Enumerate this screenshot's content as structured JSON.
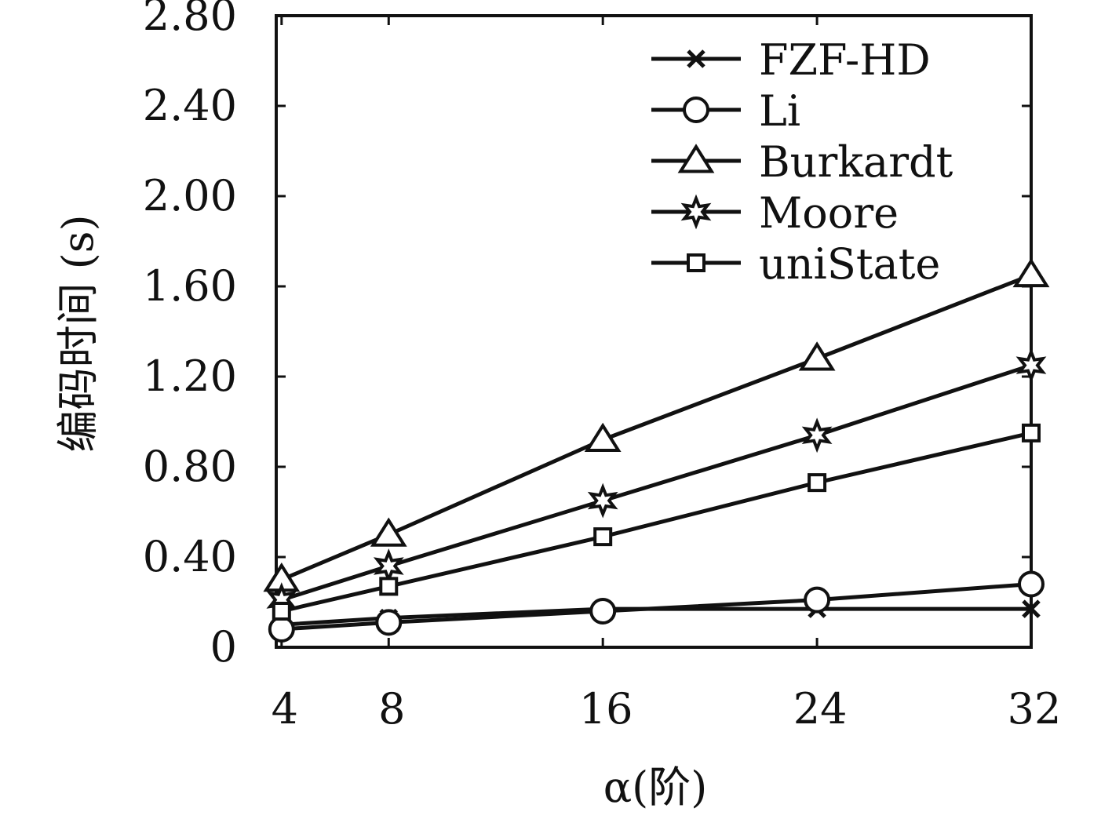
{
  "chart_data": {
    "type": "line",
    "xlabel": "α(阶)",
    "ylabel": "编码时间 (s)",
    "x": [
      4,
      8,
      16,
      24,
      32
    ],
    "xticks": [
      "4",
      "8",
      "16",
      "24",
      "32"
    ],
    "yticks": [
      "0",
      "0.40",
      "0.80",
      "1.20",
      "1.60",
      "2.00",
      "2.40",
      "2.80"
    ],
    "xlim": [
      3.8,
      32
    ],
    "ylim": [
      0,
      2.8
    ],
    "grid": false,
    "legend_position": "top-right",
    "series": [
      {
        "name": "FZF-HD",
        "marker": "x",
        "values": [
          0.1,
          0.13,
          0.17,
          0.17,
          0.17
        ]
      },
      {
        "name": "Li",
        "marker": "circle",
        "values": [
          0.08,
          0.11,
          0.16,
          0.21,
          0.28
        ]
      },
      {
        "name": "Burkardt",
        "marker": "triangle",
        "values": [
          0.3,
          0.5,
          0.92,
          1.28,
          1.65
        ]
      },
      {
        "name": "Moore",
        "marker": "star",
        "values": [
          0.21,
          0.36,
          0.65,
          0.94,
          1.25
        ]
      },
      {
        "name": "uniState",
        "marker": "square",
        "values": [
          0.16,
          0.27,
          0.49,
          0.73,
          0.95
        ]
      }
    ]
  }
}
